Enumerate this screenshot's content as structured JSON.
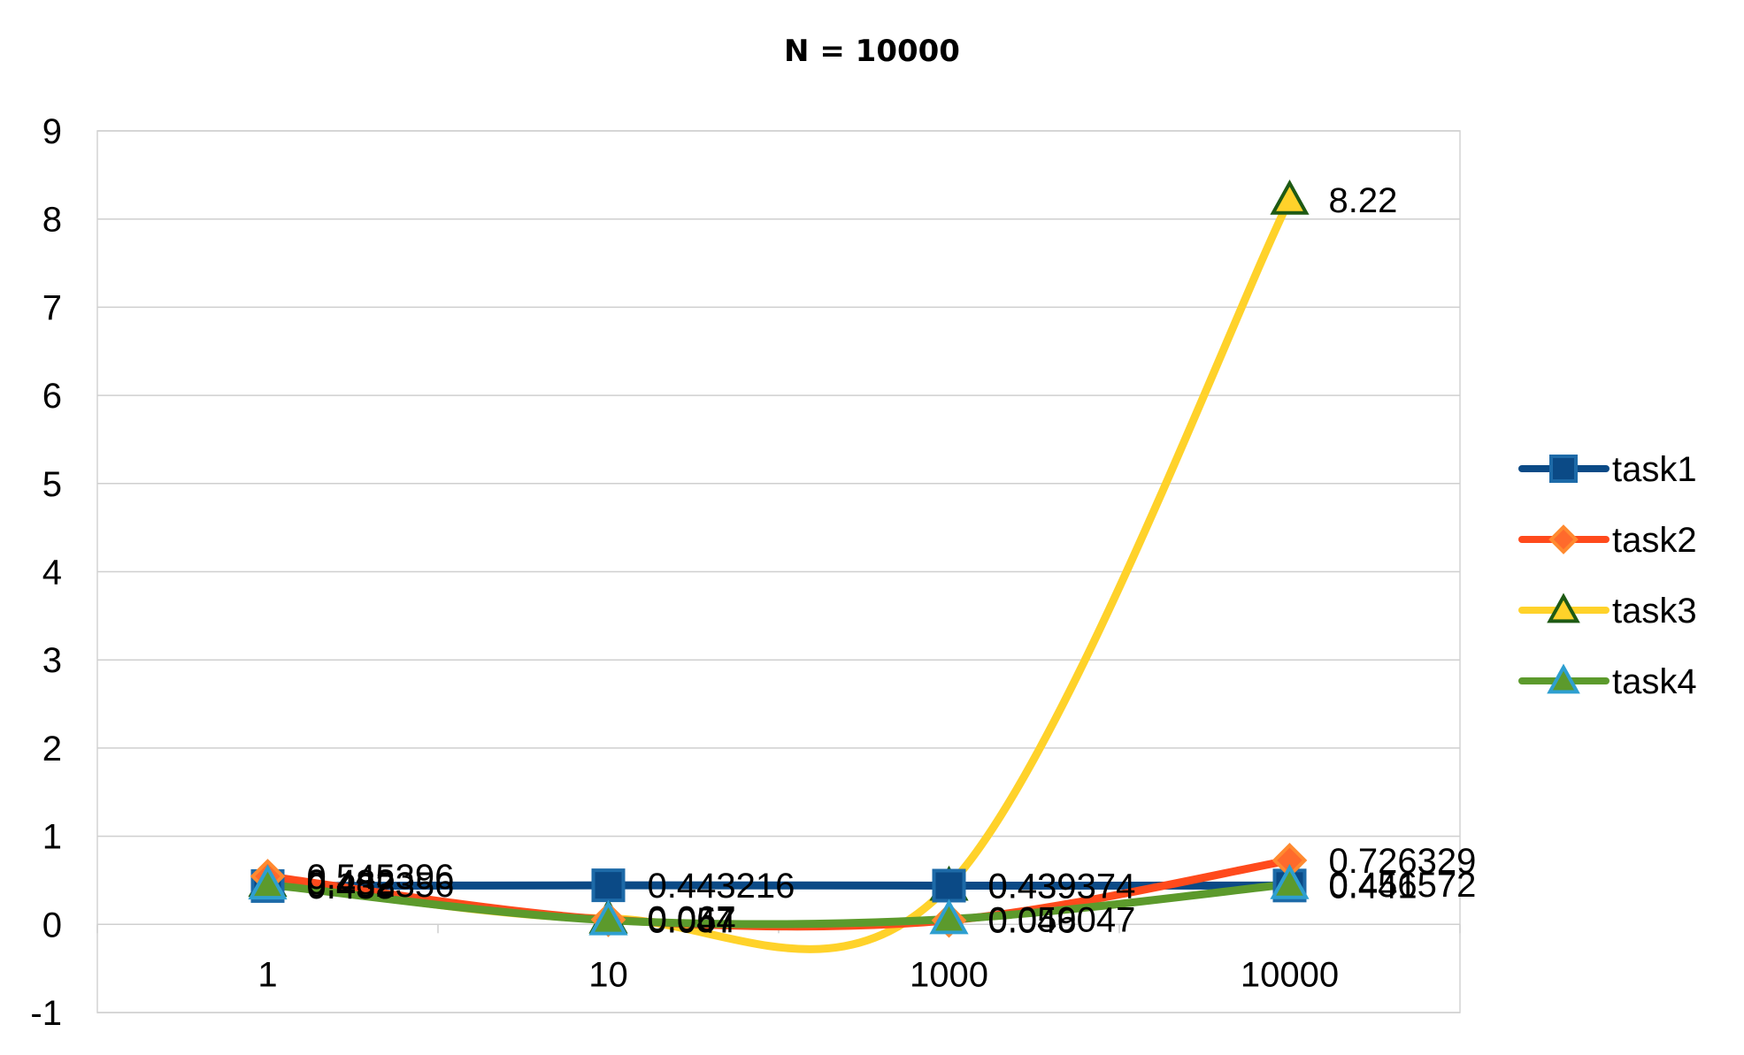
{
  "chart_data": {
    "type": "line",
    "title": "N = 10000",
    "xlabel": "",
    "ylabel": "",
    "categories": [
      "1",
      "10",
      "1000",
      "10000"
    ],
    "ylim": [
      -1,
      9
    ],
    "yticks": [
      "-1",
      "0",
      "1",
      "2",
      "3",
      "4",
      "5",
      "6",
      "7",
      "8",
      "9"
    ],
    "grid": true,
    "smooth": true,
    "legend_position": "right",
    "series": [
      {
        "name": "task1",
        "values": [
          0.435,
          0.443216,
          0.439374,
          0.441
        ],
        "labels": [
          "0.435",
          "0.443216",
          "0.439374",
          "0.441"
        ],
        "color": "#0b4a86",
        "marker": "square",
        "marker_fill": "#0b4a86",
        "marker_stroke": "#1d6aa8"
      },
      {
        "name": "task2",
        "values": [
          0.545396,
          0.054,
          0.046,
          0.726329
        ],
        "labels": [
          "0.545396",
          "0.054",
          "0.046",
          "0.726329"
        ],
        "color": "#ff4a1c",
        "marker": "diamond",
        "marker_fill": "#ff6a2c",
        "marker_stroke": "#ff8a30"
      },
      {
        "name": "task3",
        "values": [
          0.482,
          0.067,
          0.439,
          8.22
        ],
        "labels": [
          "0.482",
          "0.067",
          "0.439",
          "8.22"
        ],
        "color": "#ffd22a",
        "marker": "triangle",
        "marker_fill": "#ffd22a",
        "marker_stroke": "#1e5a14"
      },
      {
        "name": "task4",
        "values": [
          0.452356,
          0.047,
          0.059047,
          0.456572
        ],
        "labels": [
          "0.452356",
          "0.047",
          "0.059047",
          "0.456572"
        ],
        "color": "#5c9a2c",
        "marker": "triangle",
        "marker_fill": "#5c9a2c",
        "marker_stroke": "#2e9fd0"
      }
    ]
  }
}
